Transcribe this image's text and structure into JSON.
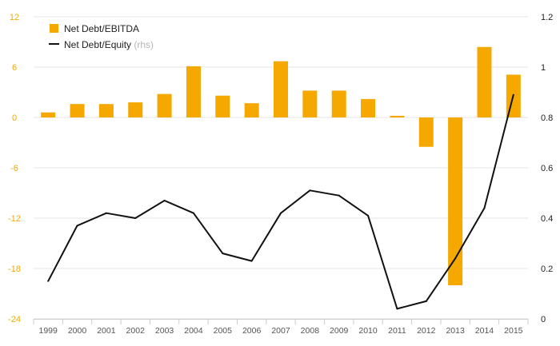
{
  "chart_data": {
    "type": "bar+line",
    "title": "",
    "categories": [
      "1999",
      "2000",
      "2001",
      "2002",
      "2003",
      "2004",
      "2005",
      "2006",
      "2007",
      "2008",
      "2009",
      "2010",
      "2011",
      "2012",
      "2013",
      "2014",
      "2015"
    ],
    "series": [
      {
        "name": "Net Debt/EBITDA",
        "type": "bar",
        "axis": "left",
        "color": "#f5a800",
        "values": [
          0.6,
          1.6,
          1.6,
          1.8,
          2.8,
          6.1,
          2.6,
          1.7,
          6.7,
          3.2,
          3.2,
          2.2,
          0.2,
          -3.5,
          -20.0,
          8.4,
          5.1
        ]
      },
      {
        "name": "Net Debt/Equity",
        "name_note": "(rhs)",
        "type": "line",
        "axis": "right",
        "color": "#111111",
        "values": [
          0.15,
          0.37,
          0.42,
          0.4,
          0.47,
          0.42,
          0.26,
          0.23,
          0.42,
          0.51,
          0.49,
          0.41,
          0.04,
          0.07,
          0.24,
          0.44,
          0.89
        ]
      }
    ],
    "y_left": {
      "ylim": [
        -24,
        12
      ],
      "ticks": [
        "12",
        "6",
        "0",
        "-6",
        "-12",
        "-18",
        "-24"
      ],
      "tick_values": [
        12,
        6,
        0,
        -6,
        -12,
        -18,
        -24
      ],
      "color": "#f5a800"
    },
    "y_right": {
      "ylim": [
        0,
        1.2
      ],
      "ticks": [
        "1.2",
        "1",
        "0.8",
        "0.6",
        "0.4",
        "0.2",
        "0"
      ],
      "tick_values": [
        1.2,
        1.0,
        0.8,
        0.6,
        0.4,
        0.2,
        0
      ],
      "color": "#222222"
    },
    "grid": true,
    "legend_position": "top-left"
  }
}
